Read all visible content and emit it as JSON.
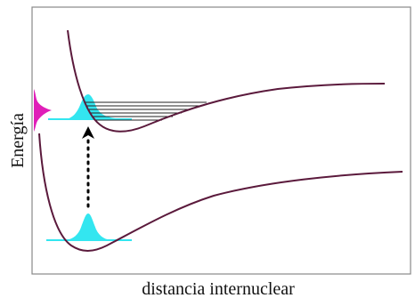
{
  "axes": {
    "ylabel": "Energía",
    "xlabel": "distancia internuclear"
  },
  "colors": {
    "curve": "#5b1a3c",
    "ground_wavefunction": "#33e6f0",
    "excited_wavefunction": "#33e6f0",
    "emission_spectrum": "#e01fb8",
    "vibrational_levels": "#222222",
    "transition_arrow": "#000000",
    "frame": "#888888"
  },
  "diagram": {
    "type": "potential-energy-curves",
    "curves": [
      "ground-state-potential",
      "excited-state-potential"
    ],
    "transition": "vertical-excitation",
    "excited_vibrational_levels_shown": 6
  }
}
